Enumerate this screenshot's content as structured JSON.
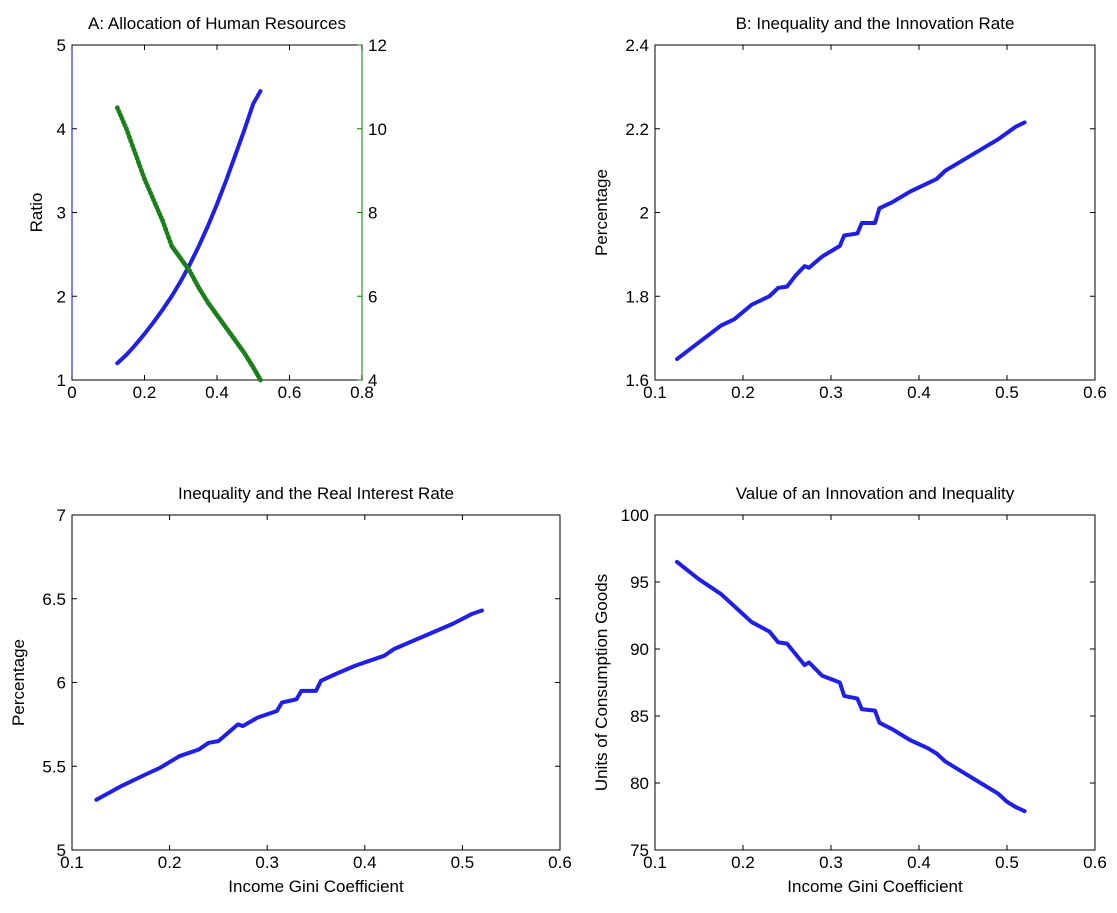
{
  "chart_data": [
    {
      "id": "A",
      "type": "line",
      "title": "A: Allocation of Human Resources",
      "xlabel": "",
      "ylabel": "Ratio",
      "y2label": "",
      "xlim": [
        0,
        0.8
      ],
      "ylim": [
        1,
        5
      ],
      "y2lim": [
        4,
        12
      ],
      "xticks": [
        "0",
        "0.2",
        "0.4",
        "0.6",
        "0.8"
      ],
      "yticks": [
        "1",
        "2",
        "3",
        "4",
        "5"
      ],
      "y2ticks": [
        "4",
        "6",
        "8",
        "10",
        "12"
      ],
      "grid": false,
      "colors": {
        "left": "#0000ff",
        "right": "#008000"
      },
      "series": [
        {
          "axis": "left",
          "color": "#1f1fe6",
          "marker": "none",
          "x": [
            0.125,
            0.15,
            0.175,
            0.2,
            0.225,
            0.25,
            0.275,
            0.3,
            0.325,
            0.35,
            0.375,
            0.4,
            0.425,
            0.45,
            0.475,
            0.5,
            0.52
          ],
          "values": [
            1.2,
            1.3,
            1.42,
            1.55,
            1.69,
            1.84,
            2.0,
            2.18,
            2.38,
            2.6,
            2.84,
            3.1,
            3.38,
            3.68,
            3.98,
            4.3,
            4.45
          ]
        },
        {
          "axis": "right",
          "color": "#1b7f1b",
          "marker": "dot",
          "x": [
            0.125,
            0.15,
            0.175,
            0.2,
            0.225,
            0.25,
            0.275,
            0.3,
            0.325,
            0.35,
            0.375,
            0.4,
            0.425,
            0.45,
            0.475,
            0.5,
            0.52
          ],
          "values": [
            10.5,
            10.0,
            9.4,
            8.8,
            8.3,
            7.8,
            7.2,
            6.9,
            6.6,
            6.2,
            5.85,
            5.55,
            5.25,
            4.95,
            4.65,
            4.3,
            4.0
          ]
        }
      ]
    },
    {
      "id": "B",
      "type": "line",
      "title": "B: Inequality and the Innovation Rate",
      "xlabel": "",
      "ylabel": "Percentage",
      "xlim": [
        0.1,
        0.6
      ],
      "ylim": [
        1.6,
        2.4
      ],
      "xticks": [
        "0.1",
        "0.2",
        "0.3",
        "0.4",
        "0.5",
        "0.6"
      ],
      "yticks": [
        "1.6",
        "1.8",
        "2",
        "2.2",
        "2.4"
      ],
      "grid": false,
      "series": [
        {
          "color": "#1f1fe6",
          "x": [
            0.125,
            0.15,
            0.175,
            0.19,
            0.21,
            0.23,
            0.24,
            0.25,
            0.26,
            0.27,
            0.275,
            0.29,
            0.31,
            0.315,
            0.33,
            0.335,
            0.35,
            0.355,
            0.37,
            0.39,
            0.41,
            0.42,
            0.43,
            0.45,
            0.47,
            0.49,
            0.5,
            0.51,
            0.52
          ],
          "values": [
            1.65,
            1.69,
            1.73,
            1.745,
            1.78,
            1.8,
            1.82,
            1.823,
            1.85,
            1.872,
            1.868,
            1.895,
            1.92,
            1.945,
            1.95,
            1.975,
            1.975,
            2.01,
            2.025,
            2.05,
            2.07,
            2.08,
            2.1,
            2.125,
            2.15,
            2.175,
            2.19,
            2.205,
            2.215
          ]
        }
      ]
    },
    {
      "id": "C",
      "type": "line",
      "title": "Inequality and the Real Interest Rate",
      "xlabel": "Income Gini Coefficient",
      "ylabel": "Percentage",
      "xlim": [
        0.1,
        0.6
      ],
      "ylim": [
        5,
        7
      ],
      "xticks": [
        "0.1",
        "0.2",
        "0.3",
        "0.4",
        "0.5",
        "0.6"
      ],
      "yticks": [
        "5",
        "5.5",
        "6",
        "6.5",
        "7"
      ],
      "grid": false,
      "series": [
        {
          "color": "#1f1fe6",
          "x": [
            0.125,
            0.15,
            0.175,
            0.19,
            0.21,
            0.23,
            0.24,
            0.25,
            0.26,
            0.27,
            0.275,
            0.29,
            0.31,
            0.315,
            0.33,
            0.335,
            0.35,
            0.355,
            0.37,
            0.39,
            0.41,
            0.42,
            0.43,
            0.45,
            0.47,
            0.49,
            0.5,
            0.51,
            0.52
          ],
          "values": [
            5.3,
            5.38,
            5.45,
            5.49,
            5.56,
            5.6,
            5.64,
            5.65,
            5.7,
            5.75,
            5.74,
            5.79,
            5.83,
            5.88,
            5.9,
            5.95,
            5.95,
            6.01,
            6.05,
            6.1,
            6.14,
            6.16,
            6.2,
            6.25,
            6.3,
            6.35,
            6.38,
            6.41,
            6.43
          ]
        }
      ]
    },
    {
      "id": "D",
      "type": "line",
      "title": "Value of an Innovation and Inequality",
      "xlabel": "Income Gini Coefficient",
      "ylabel": "Units of Consumption Goods",
      "xlim": [
        0.1,
        0.6
      ],
      "ylim": [
        75,
        100
      ],
      "xticks": [
        "0.1",
        "0.2",
        "0.3",
        "0.4",
        "0.5",
        "0.6"
      ],
      "yticks": [
        "75",
        "80",
        "85",
        "90",
        "95",
        "100"
      ],
      "grid": false,
      "series": [
        {
          "color": "#1f1fe6",
          "x": [
            0.125,
            0.15,
            0.175,
            0.19,
            0.21,
            0.23,
            0.24,
            0.25,
            0.26,
            0.27,
            0.275,
            0.29,
            0.31,
            0.315,
            0.33,
            0.335,
            0.35,
            0.355,
            0.37,
            0.39,
            0.41,
            0.42,
            0.43,
            0.45,
            0.47,
            0.49,
            0.5,
            0.51,
            0.52
          ],
          "values": [
            96.5,
            95.2,
            94.1,
            93.2,
            92.0,
            91.3,
            90.5,
            90.4,
            89.6,
            88.8,
            89.0,
            88.0,
            87.5,
            86.5,
            86.3,
            85.5,
            85.4,
            84.5,
            84.0,
            83.2,
            82.6,
            82.2,
            81.6,
            80.8,
            80.0,
            79.2,
            78.6,
            78.2,
            77.9
          ]
        }
      ]
    }
  ]
}
